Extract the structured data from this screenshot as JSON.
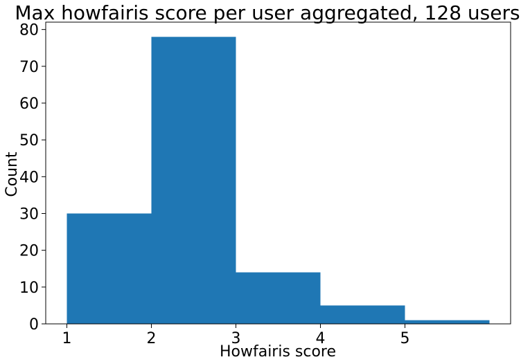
{
  "chart_data": {
    "type": "bar",
    "title": "Max howfairis score per user aggregated, 128 users",
    "xlabel": "Howfairis score",
    "ylabel": "Count",
    "bins": [
      {
        "start": 1,
        "end": 2,
        "value": 30
      },
      {
        "start": 2,
        "end": 3,
        "value": 78
      },
      {
        "start": 3,
        "end": 4,
        "value": 14
      },
      {
        "start": 4,
        "end": 5,
        "value": 5
      },
      {
        "start": 5,
        "end": 6,
        "value": 1
      }
    ],
    "xticks": [
      1,
      2,
      3,
      4,
      5
    ],
    "yticks": [
      0,
      10,
      20,
      30,
      40,
      50,
      60,
      70,
      80
    ],
    "xlim": [
      0.75,
      6.25
    ],
    "ylim": [
      0,
      82
    ],
    "grid": false,
    "bar_color": "#1f77b4"
  }
}
